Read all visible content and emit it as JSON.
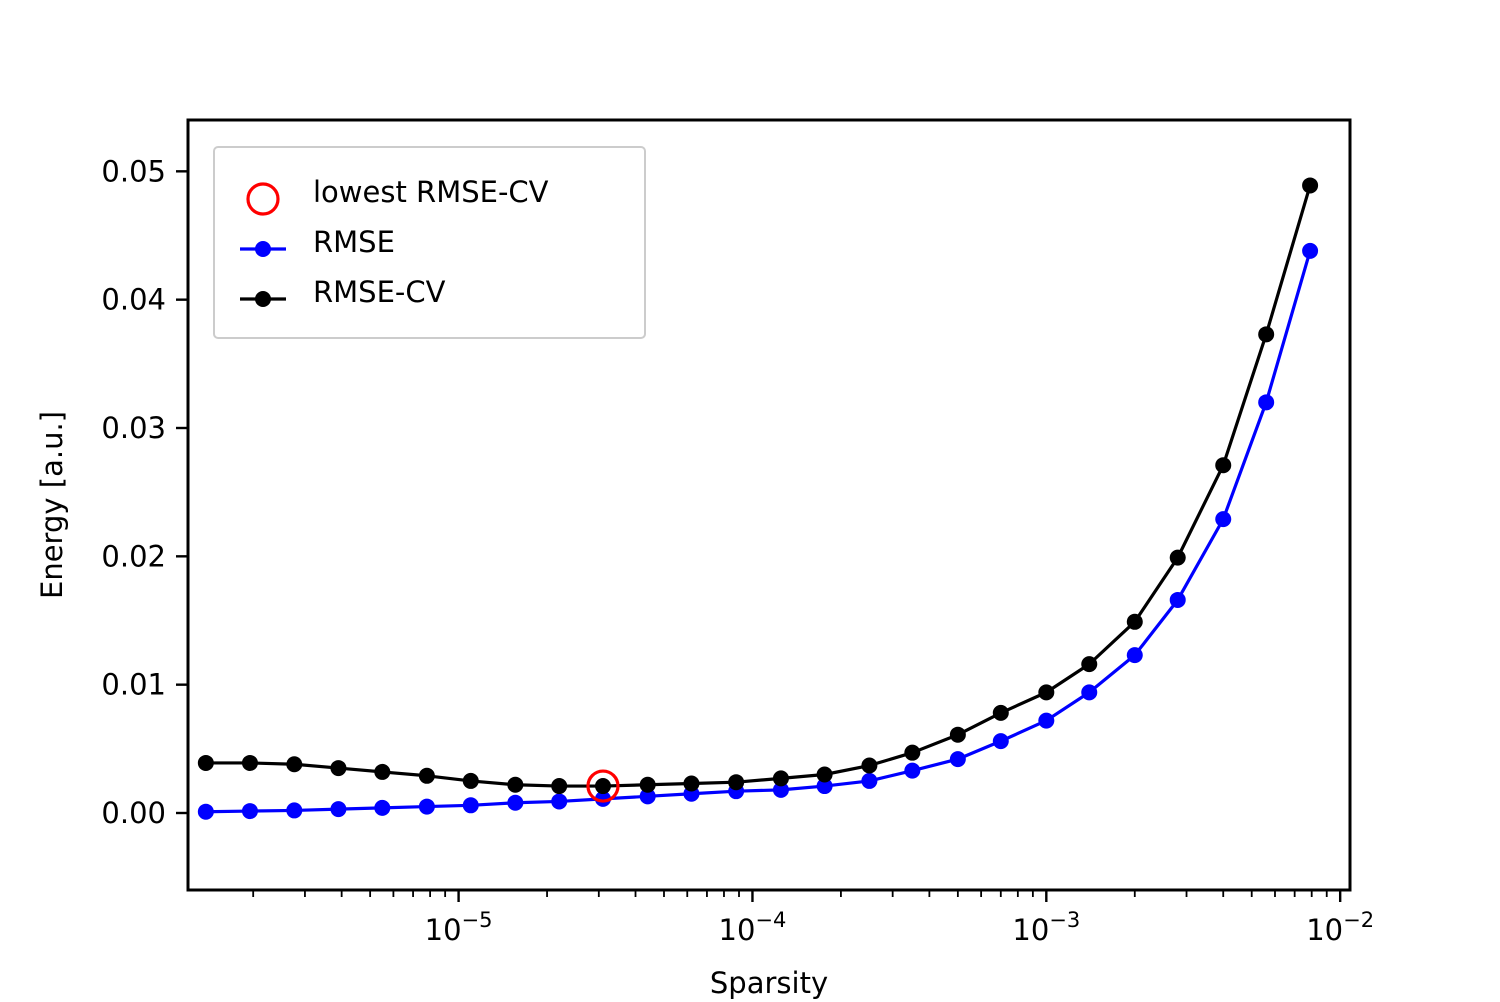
{
  "chart_data": {
    "type": "line",
    "xlabel": "Sparsity",
    "ylabel": "Energy [a.u.]",
    "xscale": "log",
    "xlim": [
      1.2e-06,
      0.0108
    ],
    "ylim": [
      -0.006,
      0.054
    ],
    "x_ticks": [
      {
        "value": 1e-05,
        "base": "10",
        "exp": "−5"
      },
      {
        "value": 0.0001,
        "base": "10",
        "exp": "−4"
      },
      {
        "value": 0.001,
        "base": "10",
        "exp": "−3"
      },
      {
        "value": 0.01,
        "base": "10",
        "exp": "−2"
      }
    ],
    "y_ticks": [
      {
        "value": 0.0,
        "label": "0.00"
      },
      {
        "value": 0.01,
        "label": "0.01"
      },
      {
        "value": 0.02,
        "label": "0.02"
      },
      {
        "value": 0.03,
        "label": "0.03"
      },
      {
        "value": 0.04,
        "label": "0.04"
      },
      {
        "value": 0.05,
        "label": "0.05"
      }
    ],
    "legend_position": "top-left",
    "grid": false,
    "x": [
      1.38e-06,
      1.95e-06,
      2.76e-06,
      3.9e-06,
      5.5e-06,
      7.8e-06,
      1.1e-05,
      1.56e-05,
      2.2e-05,
      3.1e-05,
      4.4e-05,
      6.2e-05,
      8.8e-05,
      0.000125,
      0.000176,
      0.00025,
      0.00035,
      0.0005,
      0.0007,
      0.001,
      0.0014,
      0.002,
      0.0028,
      0.004,
      0.0056,
      0.0079
    ],
    "series": [
      {
        "name": "RMSE",
        "color": "#0000ff",
        "values": [
          0.0001,
          0.00015,
          0.0002,
          0.0003,
          0.0004,
          0.0005,
          0.0006,
          0.0008,
          0.0009,
          0.0011,
          0.0013,
          0.0015,
          0.0017,
          0.0018,
          0.0021,
          0.0025,
          0.0033,
          0.0042,
          0.0056,
          0.0072,
          0.0094,
          0.0123,
          0.0166,
          0.0229,
          0.032,
          0.0438
        ]
      },
      {
        "name": "RMSE-CV",
        "color": "#000000",
        "values": [
          0.0039,
          0.0039,
          0.0038,
          0.0035,
          0.0032,
          0.0029,
          0.0025,
          0.0022,
          0.0021,
          0.0021,
          0.0022,
          0.0023,
          0.0024,
          0.0027,
          0.003,
          0.0037,
          0.0047,
          0.0061,
          0.0078,
          0.0094,
          0.0116,
          0.0149,
          0.0199,
          0.0271,
          0.0373,
          0.0489
        ]
      }
    ],
    "highlight": {
      "name": "lowest RMSE-CV",
      "color": "#ff0000",
      "x": 3.1e-05,
      "y": 0.0021
    },
    "legend": [
      {
        "label": "lowest RMSE-CV",
        "kind": "circle",
        "color": "#ff0000"
      },
      {
        "label": "RMSE",
        "kind": "line",
        "color": "#0000ff"
      },
      {
        "label": "RMSE-CV",
        "kind": "line",
        "color": "#000000"
      }
    ]
  }
}
